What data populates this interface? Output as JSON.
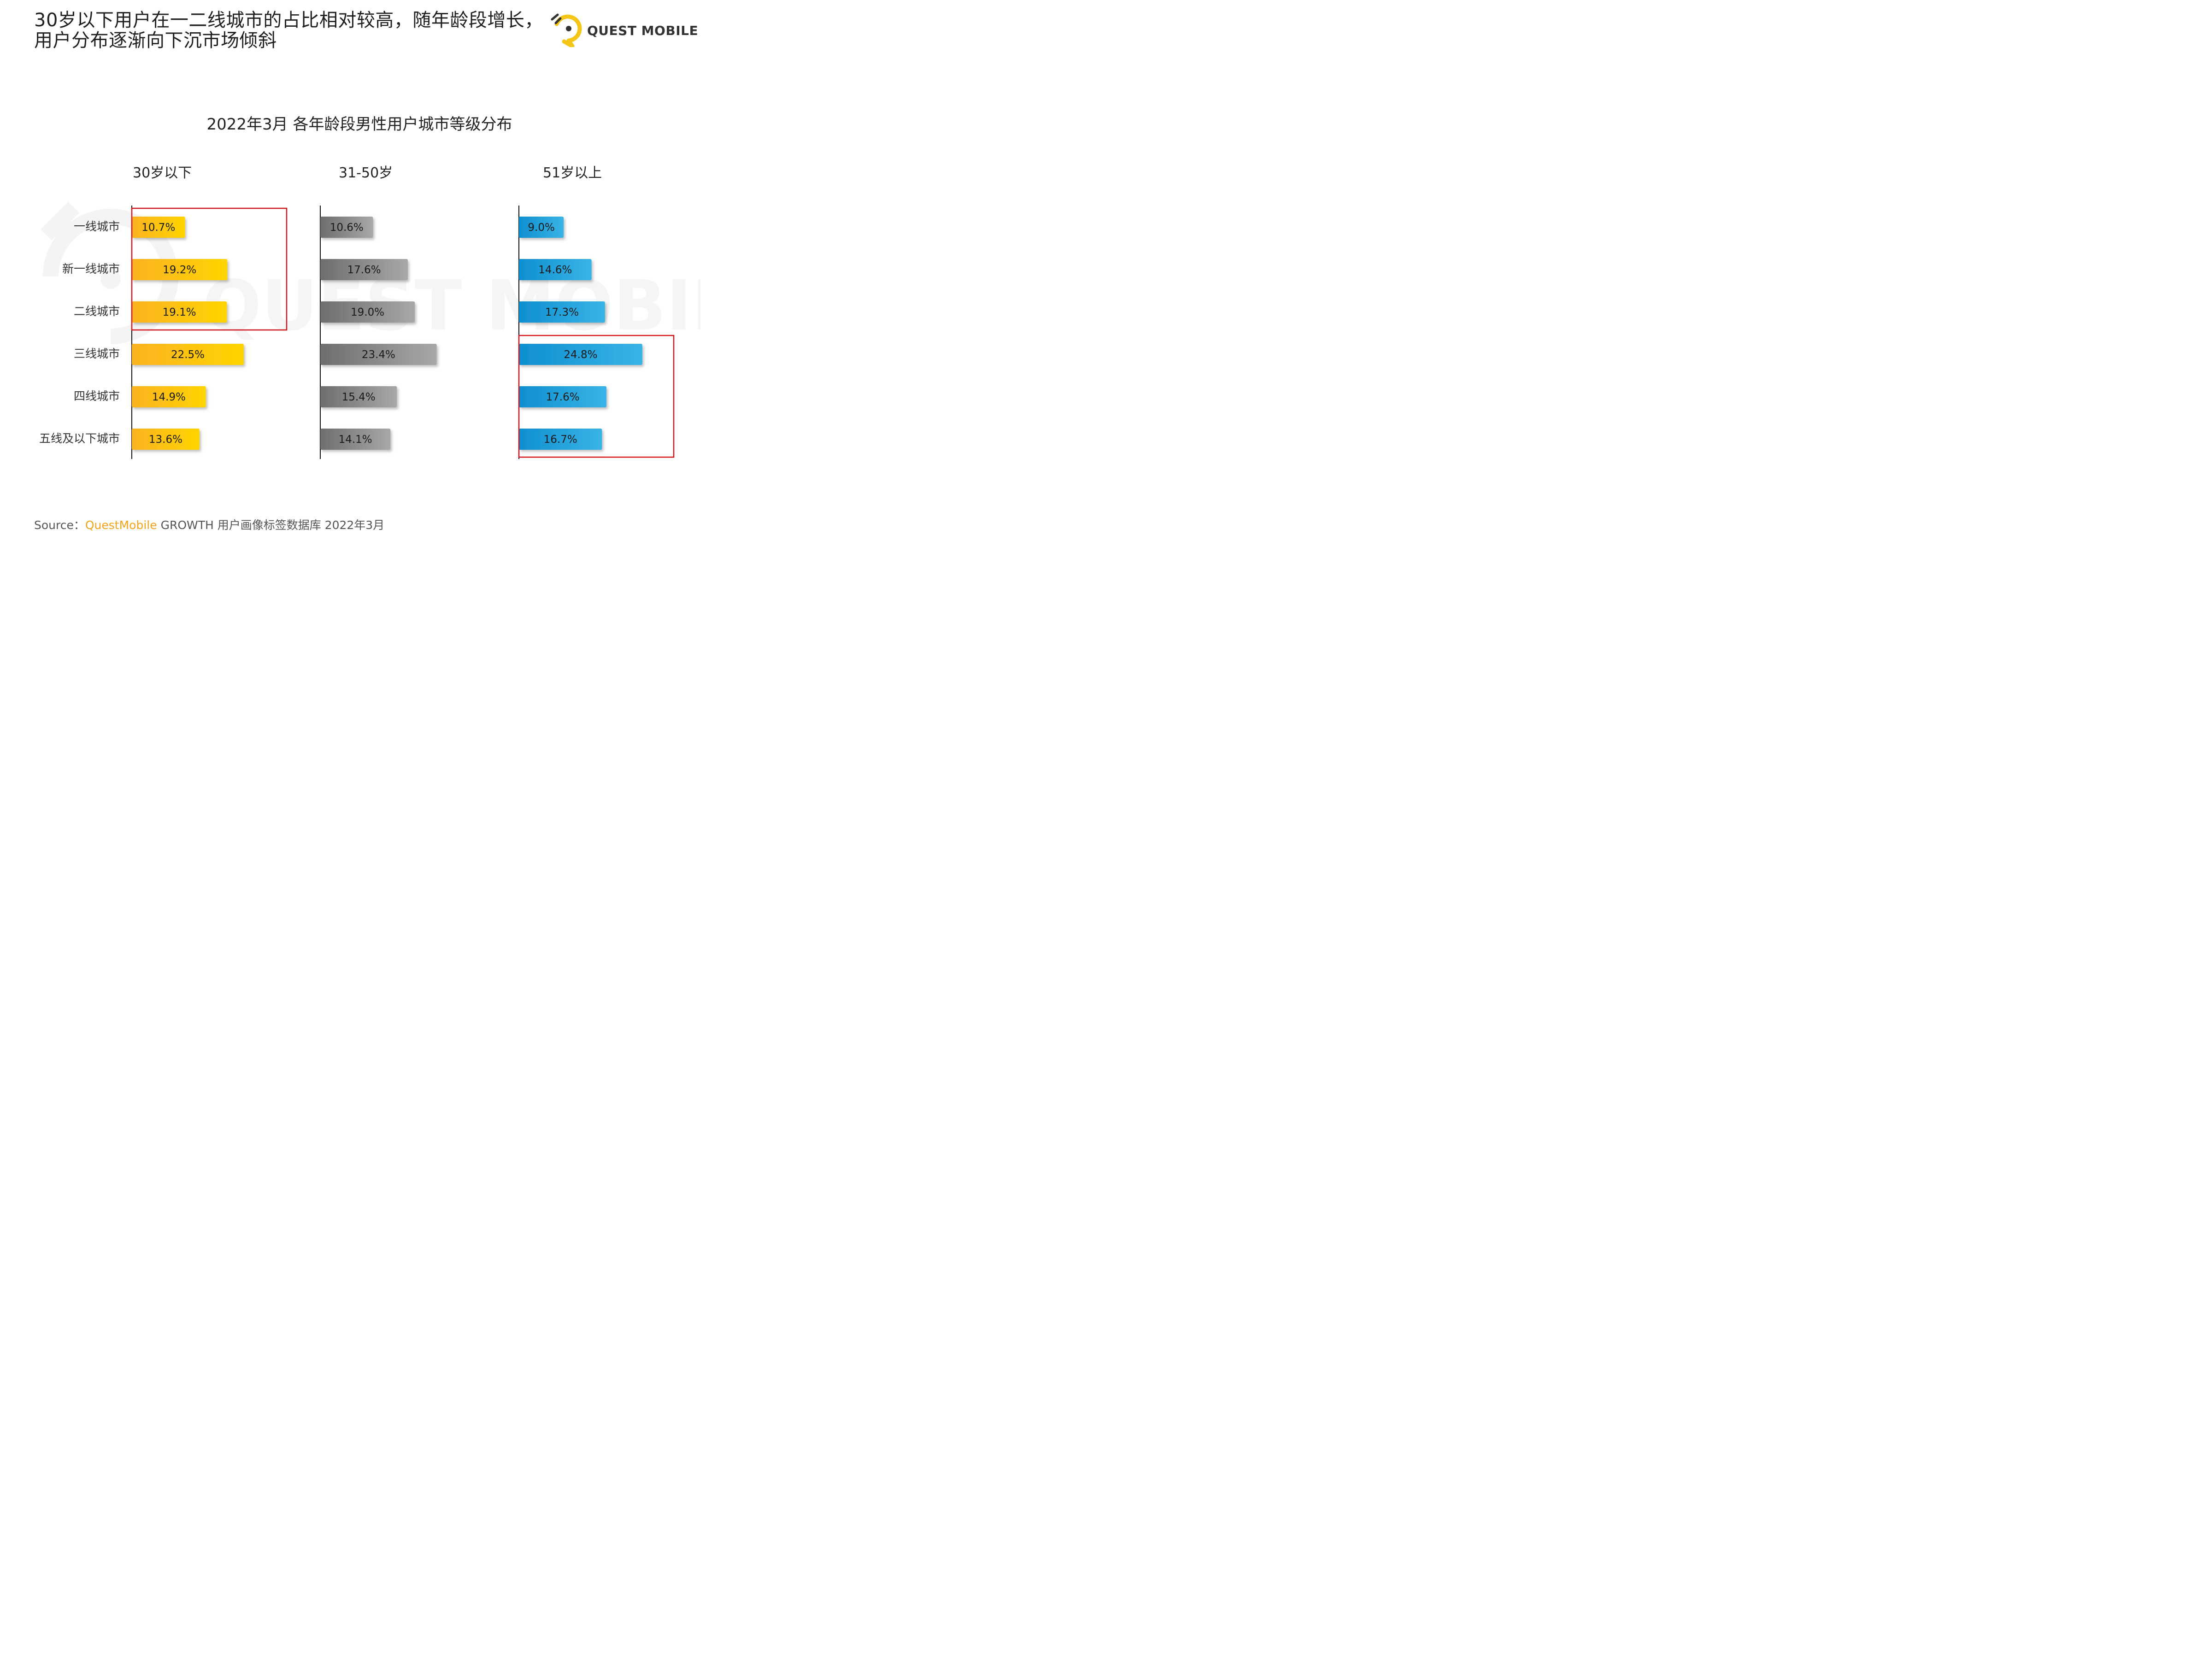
{
  "headline": "30岁以下用户在一二线城市的占比相对较高，随年龄段增长，用户分布逐渐向下沉市场倾斜",
  "logo": {
    "text": "QUEST MOBILE",
    "watermark_text": "QUEST MOBILE"
  },
  "source": {
    "prefix": "Source：",
    "brand": "QuestMobile",
    "rest": " GROWTH 用户画像标签数据库 2022年3月"
  },
  "colors": {
    "group_1": [
      "#fbb321",
      "#ffd400"
    ],
    "group_2": [
      "#6e6e6e",
      "#a8a8a8"
    ],
    "group_3": [
      "#0e8fd0",
      "#3ab4e6"
    ],
    "highlight_box": "#d0141c"
  },
  "chart_data": {
    "type": "bar",
    "orientation": "horizontal",
    "title": "2022年3月 各年龄段男性用户城市等级分布",
    "unit": "%",
    "categories": [
      "一线城市",
      "新一线城市",
      "二线城市",
      "三线城市",
      "四线城市",
      "五线及以下城市"
    ],
    "series": [
      {
        "name": "30岁以下",
        "values": [
          10.7,
          19.2,
          19.1,
          22.5,
          14.9,
          13.6
        ]
      },
      {
        "name": "31-50岁",
        "values": [
          10.6,
          17.6,
          19.0,
          23.4,
          15.4,
          14.1
        ]
      },
      {
        "name": "51岁以上",
        "values": [
          9.0,
          14.6,
          17.3,
          24.8,
          17.6,
          16.7
        ]
      }
    ],
    "highlights": [
      {
        "series": "30岁以下",
        "categories": [
          "一线城市",
          "新一线城市",
          "二线城市"
        ]
      },
      {
        "series": "51岁以上",
        "categories": [
          "三线城市",
          "四线城市",
          "五线及以下城市"
        ]
      }
    ],
    "legend": "none",
    "grid": false
  }
}
